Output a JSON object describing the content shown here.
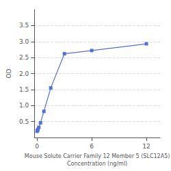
{
  "chart_data": {
    "type": "line",
    "xlabel": "Mouse Solute Carrier Family 12 Member 5 (SLC12A5)\nConcentration (ng/ml)",
    "ylabel": "OD",
    "x": [
      0.0,
      0.047,
      0.094,
      0.188,
      0.375,
      0.75,
      1.5,
      3.0,
      6.0,
      12.0
    ],
    "values": [
      0.197,
      0.22,
      0.257,
      0.32,
      0.46,
      0.82,
      1.55,
      2.62,
      2.72,
      2.93
    ],
    "marker": "square",
    "xlim": [
      -0.3,
      13.5
    ],
    "xticks": [
      0,
      6,
      12
    ],
    "ylim": [
      0,
      4.0
    ],
    "yticks": [
      0.5,
      {
        "value": 1.0,
        "label": "1.0"
      },
      1.5,
      {
        "value": 2.0,
        "label": "2.0"
      },
      2.5,
      {
        "value": 3.0,
        "label": "3.0"
      },
      3.5
    ],
    "grid": true
  }
}
